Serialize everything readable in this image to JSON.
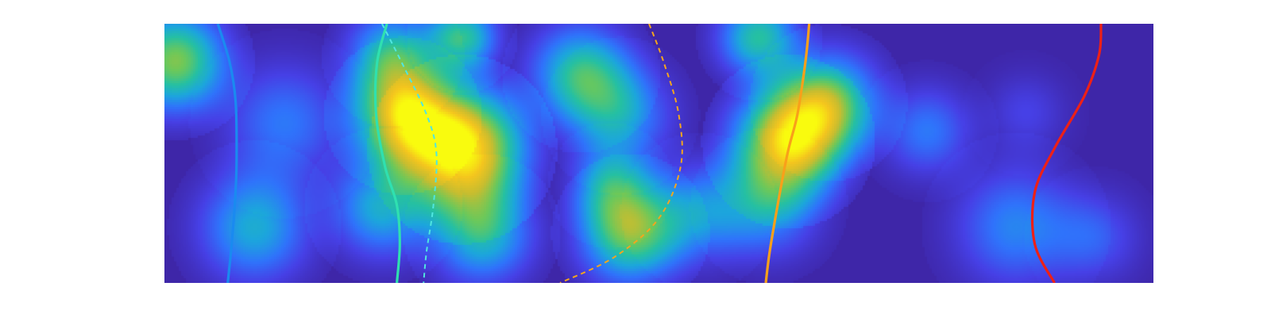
{
  "chart_data": {
    "type": "heatmap",
    "title": "",
    "xlabel": "",
    "ylabel": "",
    "colormap": "parula",
    "colormap_stops": [
      "#3e26a8",
      "#4640e6",
      "#2f73fb",
      "#1ca6dc",
      "#25c0a2",
      "#6cc85a",
      "#c8bd2f",
      "#f4c51e",
      "#f9fb0e"
    ],
    "background_color": "#3b26a6",
    "xlim": [
      0,
      1
    ],
    "ylim": [
      0,
      1
    ],
    "blobs": [
      {
        "x": 0.01,
        "y": 0.86,
        "sigma": 0.05,
        "intensity": 0.62
      },
      {
        "x": 0.09,
        "y": 0.22,
        "sigma": 0.055,
        "intensity": 0.38
      },
      {
        "x": 0.12,
        "y": 0.62,
        "sigma": 0.06,
        "intensity": 0.25
      },
      {
        "x": 0.24,
        "y": 0.65,
        "sigma": 0.05,
        "intensity": 0.72
      },
      {
        "x": 0.22,
        "y": 0.3,
        "sigma": 0.05,
        "intensity": 0.4
      },
      {
        "x": 0.23,
        "y": 0.88,
        "sigma": 0.045,
        "intensity": 0.45
      },
      {
        "x": 0.3,
        "y": 0.95,
        "sigma": 0.035,
        "intensity": 0.5
      },
      {
        "x": 0.3,
        "y": 0.52,
        "sigma": 0.06,
        "intensity": 0.95
      },
      {
        "x": 0.32,
        "y": 0.2,
        "sigma": 0.05,
        "intensity": 0.45
      },
      {
        "x": 0.42,
        "y": 0.81,
        "sigma": 0.05,
        "intensity": 0.48
      },
      {
        "x": 0.46,
        "y": 0.65,
        "sigma": 0.05,
        "intensity": 0.34
      },
      {
        "x": 0.45,
        "y": 0.38,
        "sigma": 0.04,
        "intensity": 0.32
      },
      {
        "x": 0.47,
        "y": 0.2,
        "sigma": 0.05,
        "intensity": 0.6
      },
      {
        "x": 0.54,
        "y": 0.28,
        "sigma": 0.05,
        "intensity": 0.3
      },
      {
        "x": 0.6,
        "y": 0.95,
        "sigma": 0.04,
        "intensity": 0.48
      },
      {
        "x": 0.63,
        "y": 0.55,
        "sigma": 0.055,
        "intensity": 0.8
      },
      {
        "x": 0.67,
        "y": 0.7,
        "sigma": 0.05,
        "intensity": 0.55
      },
      {
        "x": 0.61,
        "y": 0.3,
        "sigma": 0.05,
        "intensity": 0.32
      },
      {
        "x": 0.77,
        "y": 0.59,
        "sigma": 0.045,
        "intensity": 0.25
      },
      {
        "x": 0.86,
        "y": 0.22,
        "sigma": 0.06,
        "intensity": 0.28
      },
      {
        "x": 0.94,
        "y": 0.18,
        "sigma": 0.045,
        "intensity": 0.18
      },
      {
        "x": 0.87,
        "y": 0.66,
        "sigma": 0.04,
        "intensity": 0.12
      }
    ],
    "lines": [
      {
        "color": "#1a8af0",
        "style": "solid",
        "x": [
          0.054,
          0.066,
          0.072,
          0.073,
          0.072,
          0.068,
          0.064
        ],
        "y": [
          1.0,
          0.85,
          0.7,
          0.5,
          0.35,
          0.15,
          0.0
        ]
      },
      {
        "color": "#2fe0b0",
        "style": "solid",
        "x": [
          0.225,
          0.215,
          0.214,
          0.223,
          0.235,
          0.238,
          0.235
        ],
        "y": [
          1.0,
          0.85,
          0.65,
          0.45,
          0.3,
          0.15,
          0.0
        ]
      },
      {
        "color": "#4fe6e0",
        "style": "dashed",
        "x": [
          0.22,
          0.24,
          0.265,
          0.275,
          0.272,
          0.265,
          0.262
        ],
        "y": [
          1.0,
          0.85,
          0.65,
          0.5,
          0.3,
          0.12,
          0.0
        ]
      },
      {
        "color": "#f4a51e",
        "style": "dashed",
        "x": [
          0.49,
          0.505,
          0.52,
          0.522,
          0.5,
          0.455,
          0.4
        ],
        "y": [
          1.0,
          0.85,
          0.65,
          0.45,
          0.25,
          0.1,
          0.0
        ]
      },
      {
        "color": "#f9a01a",
        "style": "solid",
        "x": [
          0.652,
          0.648,
          0.64,
          0.63,
          0.62,
          0.612,
          0.608
        ],
        "y": [
          1.0,
          0.85,
          0.65,
          0.5,
          0.3,
          0.12,
          0.0
        ]
      },
      {
        "color": "#ee2016",
        "style": "solid",
        "x": [
          0.947,
          0.945,
          0.93,
          0.9,
          0.88,
          0.88,
          0.9
        ],
        "y": [
          1.0,
          0.88,
          0.72,
          0.52,
          0.35,
          0.15,
          0.0
        ]
      }
    ]
  }
}
